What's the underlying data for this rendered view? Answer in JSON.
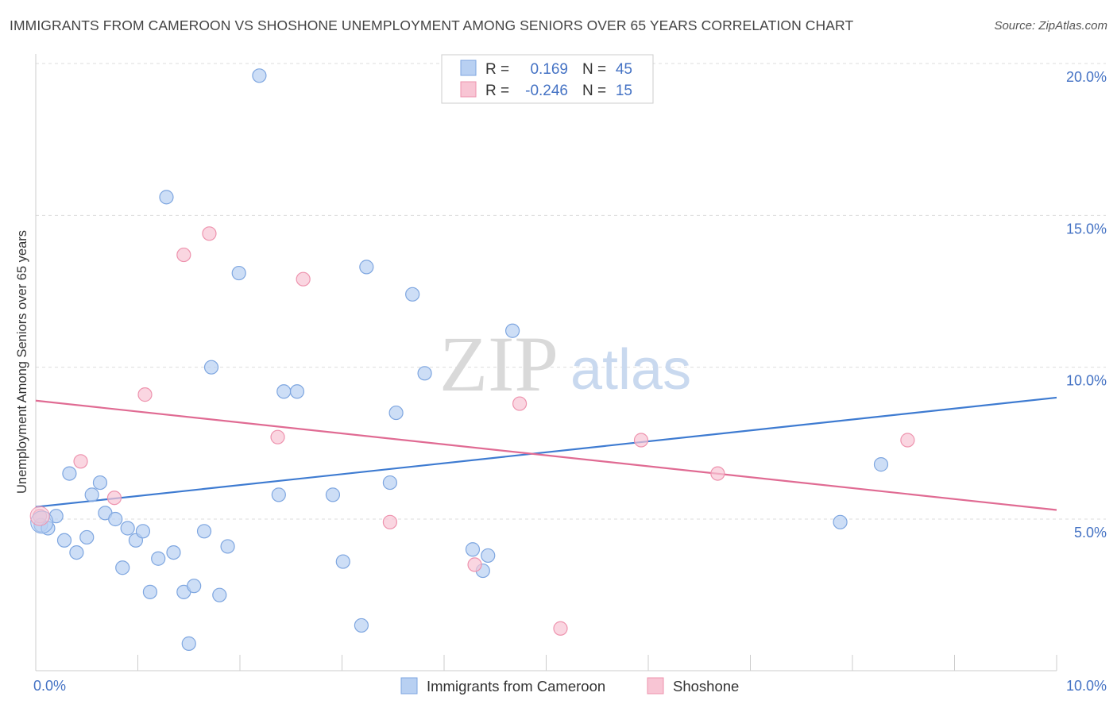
{
  "title": "IMMIGRANTS FROM CAMEROON VS SHOSHONE UNEMPLOYMENT AMONG SENIORS OVER 65 YEARS CORRELATION CHART",
  "source": "Source: ZipAtlas.com",
  "watermark": {
    "zip": "ZIP",
    "atlas": "atlas"
  },
  "colors": {
    "blue_fill": "#b8d0f2",
    "blue_stroke": "#7ea6e0",
    "blue_line": "#3e7bd1",
    "pink_fill": "#f8c5d4",
    "pink_stroke": "#ee93ae",
    "pink_line": "#e06b93",
    "grid": "#dddddd",
    "axis_label": "#4472c4"
  },
  "legend": {
    "rows": [
      {
        "r_label": "R =",
        "r_value": "0.169",
        "n_label": "N =",
        "n_value": "45"
      },
      {
        "r_label": "R =",
        "r_value": "-0.246",
        "n_label": "N =",
        "n_value": "15"
      }
    ]
  },
  "chart_data": {
    "type": "scatter",
    "ylabel": "Unemployment Among Seniors over 65 years",
    "xlim": [
      0,
      10
    ],
    "ylim": [
      0,
      20.5
    ],
    "x_tick_labels": [
      {
        "value": 0,
        "label": "0.0%"
      },
      {
        "value": 10,
        "label": "10.0%"
      }
    ],
    "y_tick_labels": [
      {
        "value": 5,
        "label": "5.0%"
      },
      {
        "value": 10,
        "label": "10.0%"
      },
      {
        "value": 15,
        "label": "15.0%"
      },
      {
        "value": 20,
        "label": "20.0%"
      }
    ],
    "series": [
      {
        "name": "Immigrants from Cameroon",
        "trend": {
          "x": [
            0,
            10
          ],
          "y": [
            5.4,
            9.0
          ]
        },
        "points": [
          [
            0.05,
            4.8
          ],
          [
            0.12,
            4.7
          ],
          [
            0.2,
            5.1
          ],
          [
            0.28,
            4.3
          ],
          [
            0.33,
            6.5
          ],
          [
            0.4,
            3.9
          ],
          [
            0.5,
            4.4
          ],
          [
            0.55,
            5.8
          ],
          [
            0.63,
            6.2
          ],
          [
            0.68,
            5.2
          ],
          [
            0.78,
            5.0
          ],
          [
            0.85,
            3.4
          ],
          [
            0.9,
            4.7
          ],
          [
            0.98,
            4.3
          ],
          [
            1.05,
            4.6
          ],
          [
            1.12,
            2.6
          ],
          [
            1.2,
            3.7
          ],
          [
            1.28,
            15.6
          ],
          [
            1.35,
            3.9
          ],
          [
            1.45,
            2.6
          ],
          [
            1.5,
            0.9
          ],
          [
            1.55,
            2.8
          ],
          [
            1.65,
            4.6
          ],
          [
            1.72,
            10.0
          ],
          [
            1.8,
            2.5
          ],
          [
            1.88,
            4.1
          ],
          [
            1.99,
            13.1
          ],
          [
            2.19,
            19.6
          ],
          [
            2.38,
            5.8
          ],
          [
            2.43,
            9.2
          ],
          [
            2.56,
            9.2
          ],
          [
            2.91,
            5.8
          ],
          [
            3.01,
            3.6
          ],
          [
            3.19,
            1.5
          ],
          [
            3.24,
            13.3
          ],
          [
            3.47,
            6.2
          ],
          [
            3.53,
            8.5
          ],
          [
            3.69,
            12.4
          ],
          [
            3.81,
            9.8
          ],
          [
            4.28,
            4.0
          ],
          [
            4.38,
            3.3
          ],
          [
            4.43,
            3.8
          ],
          [
            4.67,
            11.2
          ],
          [
            7.88,
            4.9
          ],
          [
            8.28,
            6.8
          ]
        ]
      },
      {
        "name": "Shoshone",
        "trend": {
          "x": [
            0,
            10
          ],
          "y": [
            8.9,
            5.3
          ]
        },
        "points": [
          [
            0.04,
            5.1
          ],
          [
            0.44,
            6.9
          ],
          [
            0.77,
            5.7
          ],
          [
            1.07,
            9.1
          ],
          [
            1.45,
            13.7
          ],
          [
            1.7,
            14.4
          ],
          [
            2.37,
            7.7
          ],
          [
            2.62,
            12.9
          ],
          [
            3.47,
            4.9
          ],
          [
            4.3,
            3.5
          ],
          [
            4.74,
            8.8
          ],
          [
            5.14,
            1.4
          ],
          [
            5.93,
            7.6
          ],
          [
            6.68,
            6.5
          ],
          [
            8.54,
            7.6
          ]
        ]
      }
    ]
  }
}
